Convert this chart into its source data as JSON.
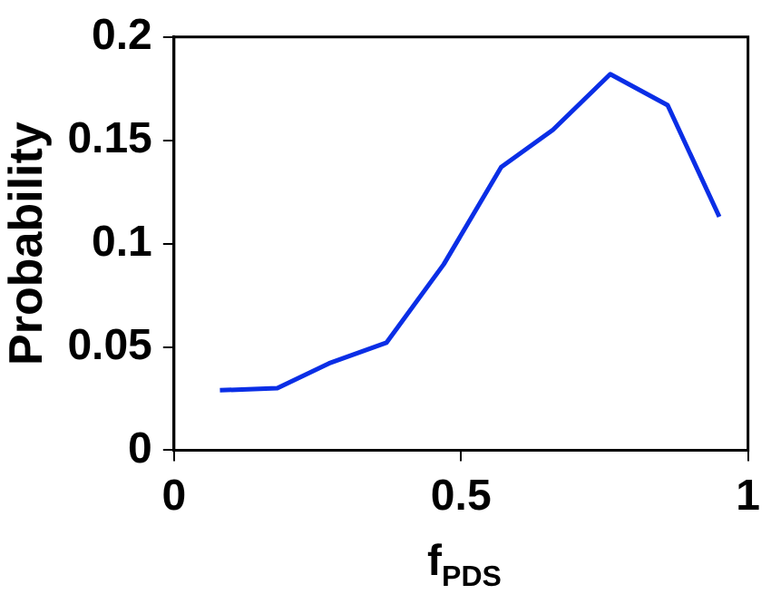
{
  "chart_data": {
    "type": "line",
    "xlabel": "f$_{PDS}$",
    "ylabel": "Probability",
    "x": [
      0.08,
      0.18,
      0.27,
      0.37,
      0.47,
      0.57,
      0.66,
      0.76,
      0.86,
      0.95
    ],
    "series": [
      {
        "color": "#0a2ee6",
        "values": [
          0.029,
          0.03,
          0.042,
          0.052,
          0.09,
          0.137,
          0.155,
          0.182,
          0.167,
          0.113
        ]
      }
    ],
    "xlim": [
      0,
      1
    ],
    "xticks": [
      0,
      0.5,
      1
    ],
    "ylim": [
      0,
      0.2
    ],
    "yticks": [
      0,
      0.05,
      0.1,
      0.15,
      0.2
    ],
    "grid": false,
    "legend": false,
    "marker": "none",
    "line_style": "solid"
  }
}
